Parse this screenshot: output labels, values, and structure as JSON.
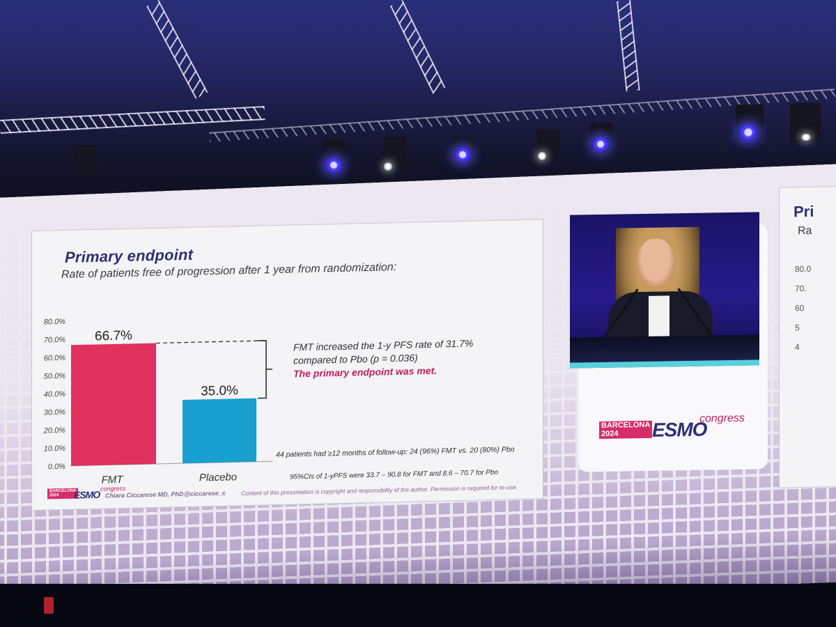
{
  "slide": {
    "title": "Primary endpoint",
    "subtitle": "Rate of patients free of progression after 1 year from randomization:",
    "note_line1": "FMT increased the 1-y PFS rate of 31.7%",
    "note_line2": "compared to Pbo (p = 0.036)",
    "note_highlight": "The primary endpoint was met.",
    "followup": "44 patients had ≥12 months of follow-up: 24 (96%) FMT vs. 20 (80%) Pbo",
    "ci_note": "95%CIs of 1-yPFS were 33.7 – 90.8 for FMT and 8.6 – 70.7 for Pbo",
    "author": "Chiara Ciccarese MD, PhD",
    "handle": "@ciccarese_c",
    "copyright": "Content of this presentation is copyright and responsibility of the author. Permission is required for re-use."
  },
  "logo": {
    "city": "BARCELONA",
    "year": "2024",
    "word": "ESMO",
    "congress": "congress"
  },
  "right_slide": {
    "title_partial": "Pri",
    "subtitle_partial": "Ra",
    "ticks": [
      "80.0",
      "70.",
      "60",
      "5",
      "4"
    ]
  },
  "chart_data": {
    "type": "bar",
    "categories": [
      "FMT",
      "Placebo"
    ],
    "values": [
      66.7,
      35.0
    ],
    "value_labels": [
      "66.7%",
      "35.0%"
    ],
    "colors": [
      "#e0315f",
      "#1a9fd1"
    ],
    "yticks": [
      "0.0%",
      "10.0%",
      "20.0%",
      "30.0%",
      "40.0%",
      "50.0%",
      "60.0%",
      "70.0%",
      "80.0%"
    ],
    "ylim": [
      0,
      80
    ],
    "grid": false,
    "bracket": "dashed line from FMT bar top to Placebo bar with bracket"
  }
}
